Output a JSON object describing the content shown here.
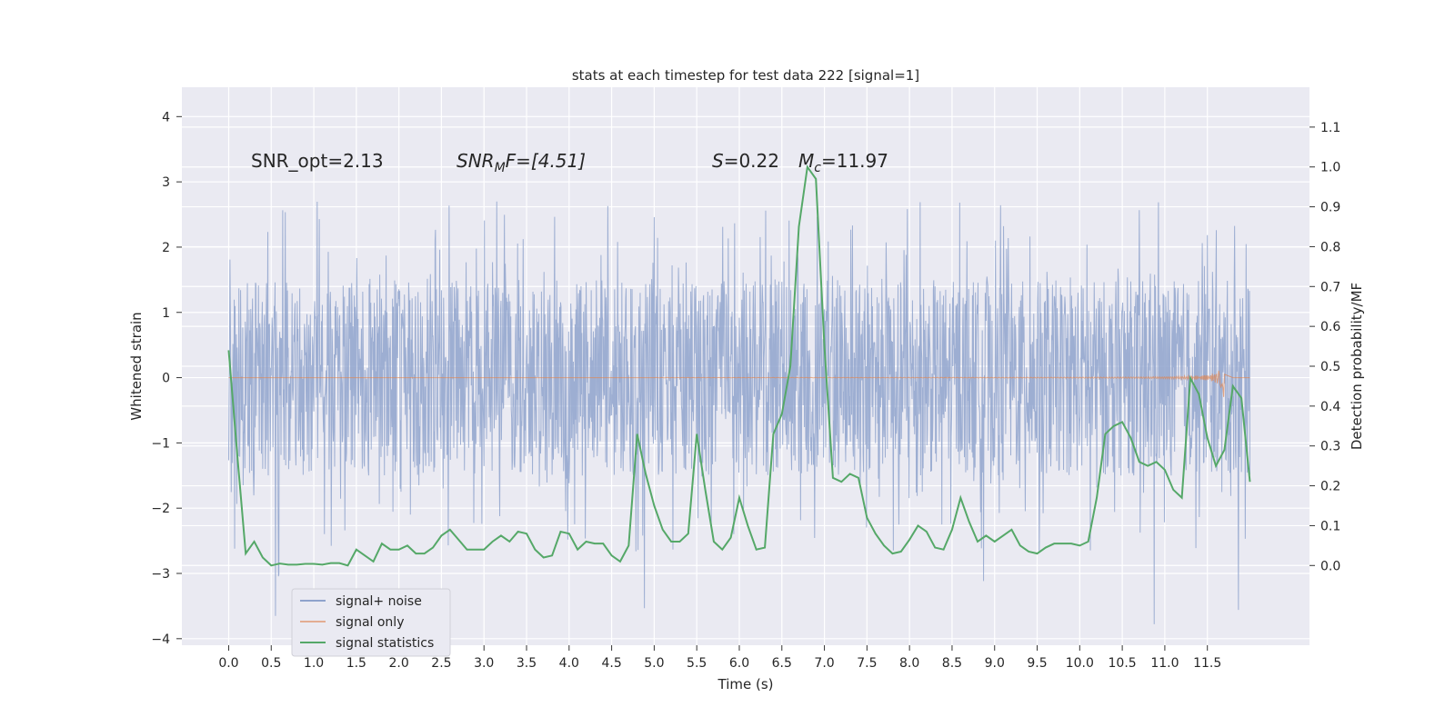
{
  "chart_data": {
    "type": "line",
    "title": "stats at each timestep for test data 222 [signal=1]",
    "xlabel": "Time (s)",
    "ylabel": "Whitened strain",
    "ylabel_right": "Detection probability/MF",
    "xlim": [
      -0.55,
      12.7
    ],
    "ylim": [
      -4.1,
      4.45
    ],
    "ylim_right": [
      -0.2,
      1.2
    ],
    "x_ticks": [
      "0.0",
      "0.5",
      "1.0",
      "1.5",
      "2.0",
      "2.5",
      "3.0",
      "3.5",
      "4.0",
      "4.5",
      "5.0",
      "5.5",
      "6.0",
      "6.5",
      "7.0",
      "7.5",
      "8.0",
      "8.5",
      "9.0",
      "9.5",
      "10.0",
      "10.5",
      "11.0",
      "11.5"
    ],
    "y_ticks": [
      "4",
      "3",
      "2",
      "1",
      "0",
      "−1",
      "−2",
      "−3",
      "−4"
    ],
    "y_ticks_right": [
      "1.1",
      "1.0",
      "0.9",
      "0.8",
      "0.7",
      "0.6",
      "0.5",
      "0.4",
      "0.3",
      "0.2",
      "0.1",
      "0.0"
    ],
    "grid": true,
    "legend_position": "lower-left",
    "colors": {
      "background": "#eaeaf2",
      "noise": "#8fa3cc",
      "signal": "#dd8452",
      "stats": "#55a868"
    },
    "annotations": {
      "snr_opt": "SNR_opt=2.13",
      "snr_mf_base": "SNR",
      "snr_mf_sub": "M",
      "snr_mf_rest": "F=[4.51]",
      "s_label": "S",
      "s_rest": "=0.22",
      "mc_base": "M",
      "mc_sub": "c",
      "mc_rest": "=11.97"
    },
    "series": [
      {
        "name": "signal+ noise",
        "x_range": [
          0.0,
          12.0
        ],
        "description_values": "noise band approx ±1.5 with spikes to ±4"
      },
      {
        "name": "signal only",
        "x_range": [
          0.0,
          12.0
        ],
        "amplitude_end": 0.4
      },
      {
        "name": "signal statistics",
        "x": [
          0.0,
          0.1,
          0.2,
          0.3,
          0.4,
          0.5,
          0.6,
          0.7,
          0.8,
          0.9,
          1.0,
          1.1,
          1.2,
          1.3,
          1.4,
          1.5,
          1.6,
          1.7,
          1.8,
          1.9,
          2.0,
          2.1,
          2.2,
          2.3,
          2.4,
          2.5,
          2.6,
          2.7,
          2.8,
          2.9,
          3.0,
          3.1,
          3.2,
          3.3,
          3.4,
          3.5,
          3.6,
          3.7,
          3.8,
          3.9,
          4.0,
          4.1,
          4.2,
          4.3,
          4.4,
          4.5,
          4.6,
          4.7,
          4.8,
          4.9,
          5.0,
          5.1,
          5.2,
          5.3,
          5.4,
          5.5,
          5.6,
          5.7,
          5.8,
          5.9,
          6.0,
          6.1,
          6.2,
          6.3,
          6.4,
          6.5,
          6.6,
          6.7,
          6.8,
          6.9,
          7.0,
          7.1,
          7.2,
          7.3,
          7.4,
          7.5,
          7.6,
          7.7,
          7.8,
          7.9,
          8.0,
          8.1,
          8.2,
          8.3,
          8.4,
          8.5,
          8.6,
          8.7,
          8.8,
          8.9,
          9.0,
          9.1,
          9.2,
          9.3,
          9.4,
          9.5,
          9.6,
          9.7,
          9.8,
          9.9,
          10.0,
          10.1,
          10.2,
          10.3,
          10.4,
          10.5,
          10.6,
          10.7,
          10.8,
          10.9,
          11.0,
          11.1,
          11.2,
          11.3,
          11.4,
          11.5,
          11.6,
          11.7,
          11.8,
          11.9,
          12.0
        ],
        "values": [
          0.54,
          0.28,
          0.03,
          0.06,
          0.02,
          0.0,
          0.005,
          0.002,
          0.002,
          0.004,
          0.004,
          0.002,
          0.006,
          0.006,
          0.0,
          0.04,
          0.025,
          0.01,
          0.055,
          0.04,
          0.04,
          0.05,
          0.03,
          0.03,
          0.045,
          0.075,
          0.09,
          0.065,
          0.04,
          0.04,
          0.04,
          0.06,
          0.075,
          0.06,
          0.085,
          0.08,
          0.04,
          0.02,
          0.025,
          0.085,
          0.08,
          0.04,
          0.06,
          0.055,
          0.055,
          0.025,
          0.01,
          0.05,
          0.33,
          0.23,
          0.15,
          0.09,
          0.06,
          0.06,
          0.08,
          0.33,
          0.19,
          0.06,
          0.04,
          0.07,
          0.17,
          0.1,
          0.04,
          0.045,
          0.33,
          0.38,
          0.5,
          0.85,
          1.0,
          0.97,
          0.55,
          0.22,
          0.21,
          0.23,
          0.22,
          0.12,
          0.08,
          0.05,
          0.03,
          0.035,
          0.065,
          0.1,
          0.085,
          0.045,
          0.04,
          0.09,
          0.17,
          0.11,
          0.06,
          0.075,
          0.06,
          0.075,
          0.09,
          0.05,
          0.035,
          0.03,
          0.045,
          0.055,
          0.055,
          0.055,
          0.05,
          0.06,
          0.17,
          0.33,
          0.35,
          0.36,
          0.32,
          0.26,
          0.25,
          0.26,
          0.24,
          0.19,
          0.17,
          0.47,
          0.43,
          0.32,
          0.25,
          0.29,
          0.45,
          0.42,
          0.21
        ]
      }
    ]
  }
}
